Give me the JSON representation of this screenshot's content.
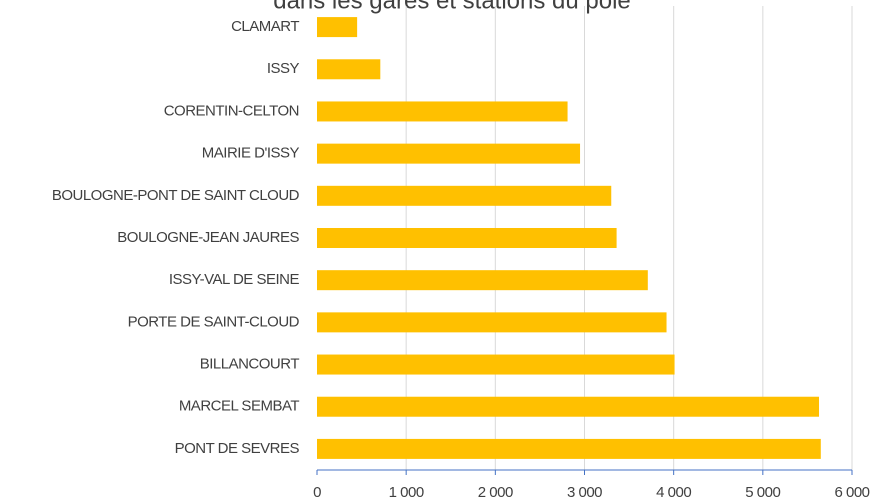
{
  "chart_data": {
    "type": "barh",
    "title": "dans les gares et stations du pôle",
    "categories": [
      "CLAMART",
      "ISSY",
      "CORENTIN-CELTON",
      "MAIRIE D'ISSY",
      "BOULOGNE-PONT DE SAINT CLOUD",
      "BOULOGNE-JEAN JAURES",
      "ISSY-VAL DE SEINE",
      "PORTE DE SAINT-CLOUD",
      "BILLANCOURT",
      "MARCEL SEMBAT",
      "PONT DE SEVRES"
    ],
    "values": [
      450,
      710,
      2810,
      2950,
      3300,
      3360,
      3710,
      3920,
      4010,
      5630,
      5650
    ],
    "color": "#ffc000",
    "xlim": [
      0,
      6000
    ],
    "xticks": [
      0,
      {
        "value": 1000,
        "label": "1 000"
      },
      {
        "value": 2000,
        "label": "2 000"
      },
      {
        "value": 3000,
        "label": "3 000"
      },
      {
        "value": 4000,
        "label": "4 000"
      },
      {
        "value": 5000,
        "label": "5 000"
      },
      {
        "value": 6000,
        "label": "6 000"
      }
    ],
    "grid": true
  }
}
